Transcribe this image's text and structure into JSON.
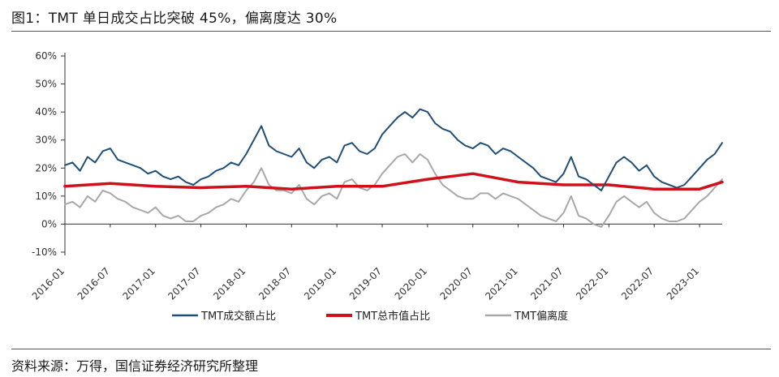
{
  "figure": {
    "title": "图1：TMT 单日成交占比突破 45%，偏离度达 30%",
    "source": "资料来源：万得，国信证券经济研究所整理"
  },
  "colors": {
    "turnover": "#1f4e79",
    "marketcap": "#d0101a",
    "deviation": "#a8a8a8",
    "axis": "#333333"
  },
  "chart_data": {
    "type": "line",
    "title": "",
    "xlabel": "",
    "ylabel": "",
    "ylim": [
      -10,
      60
    ],
    "y_ticks": [
      "-10%",
      "0%",
      "10%",
      "20%",
      "30%",
      "40%",
      "50%",
      "60%"
    ],
    "y_tick_values": [
      -10,
      0,
      10,
      20,
      30,
      40,
      50,
      60
    ],
    "x_ticks": [
      "2016-01",
      "2016-07",
      "2017-01",
      "2017-07",
      "2018-01",
      "2018-07",
      "2019-01",
      "2019-07",
      "2020-01",
      "2020-07",
      "2021-01",
      "2021-07",
      "2022-01",
      "2022-07",
      "2023-01"
    ],
    "x_range": [
      "2016-01",
      "2023-04"
    ],
    "grid": false,
    "legend_position": "bottom",
    "series": [
      {
        "name": "TMT成交额占比",
        "key": "turnover",
        "x": [
          "2016-01",
          "2016-02",
          "2016-03",
          "2016-04",
          "2016-05",
          "2016-06",
          "2016-07",
          "2016-08",
          "2016-09",
          "2016-10",
          "2016-11",
          "2016-12",
          "2017-01",
          "2017-02",
          "2017-03",
          "2017-04",
          "2017-05",
          "2017-06",
          "2017-07",
          "2017-08",
          "2017-09",
          "2017-10",
          "2017-11",
          "2017-12",
          "2018-01",
          "2018-02",
          "2018-03",
          "2018-04",
          "2018-05",
          "2018-06",
          "2018-07",
          "2018-08",
          "2018-09",
          "2018-10",
          "2018-11",
          "2018-12",
          "2019-01",
          "2019-02",
          "2019-03",
          "2019-04",
          "2019-05",
          "2019-06",
          "2019-07",
          "2019-08",
          "2019-09",
          "2019-10",
          "2019-11",
          "2019-12",
          "2020-01",
          "2020-02",
          "2020-03",
          "2020-04",
          "2020-05",
          "2020-06",
          "2020-07",
          "2020-08",
          "2020-09",
          "2020-10",
          "2020-11",
          "2020-12",
          "2021-01",
          "2021-02",
          "2021-03",
          "2021-04",
          "2021-05",
          "2021-06",
          "2021-07",
          "2021-08",
          "2021-09",
          "2021-10",
          "2021-11",
          "2021-12",
          "2022-01",
          "2022-02",
          "2022-03",
          "2022-04",
          "2022-05",
          "2022-06",
          "2022-07",
          "2022-08",
          "2022-09",
          "2022-10",
          "2022-11",
          "2022-12",
          "2023-01",
          "2023-02",
          "2023-03",
          "2023-04"
        ],
        "values": [
          21,
          22,
          19,
          24,
          22,
          26,
          27,
          23,
          22,
          21,
          20,
          18,
          19,
          17,
          16,
          17,
          15,
          14,
          16,
          17,
          19,
          20,
          22,
          21,
          25,
          30,
          35,
          28,
          26,
          25,
          24,
          27,
          22,
          20,
          23,
          24,
          22,
          28,
          29,
          26,
          25,
          27,
          32,
          35,
          38,
          40,
          38,
          41,
          40,
          36,
          34,
          33,
          30,
          28,
          27,
          29,
          28,
          25,
          27,
          26,
          24,
          22,
          20,
          17,
          16,
          15,
          18,
          24,
          17,
          16,
          14,
          12,
          17,
          22,
          24,
          22,
          19,
          21,
          17,
          15,
          14,
          13,
          14,
          17,
          20,
          23,
          25,
          29
        ]
      },
      {
        "name": "TMT总市值占比",
        "key": "marketcap",
        "x": [
          "2016-01",
          "2016-07",
          "2017-01",
          "2017-07",
          "2018-01",
          "2018-07",
          "2019-01",
          "2019-07",
          "2020-01",
          "2020-07",
          "2021-01",
          "2021-07",
          "2022-01",
          "2022-07",
          "2023-01",
          "2023-04"
        ],
        "values": [
          13.5,
          14.5,
          13.5,
          13,
          13.5,
          12.5,
          13.5,
          13.5,
          16,
          18,
          15,
          14,
          14,
          12.5,
          12.5,
          15
        ]
      },
      {
        "name": "TMT偏离度",
        "key": "deviation",
        "x": [
          "2016-01",
          "2016-02",
          "2016-03",
          "2016-04",
          "2016-05",
          "2016-06",
          "2016-07",
          "2016-08",
          "2016-09",
          "2016-10",
          "2016-11",
          "2016-12",
          "2017-01",
          "2017-02",
          "2017-03",
          "2017-04",
          "2017-05",
          "2017-06",
          "2017-07",
          "2017-08",
          "2017-09",
          "2017-10",
          "2017-11",
          "2017-12",
          "2018-01",
          "2018-02",
          "2018-03",
          "2018-04",
          "2018-05",
          "2018-06",
          "2018-07",
          "2018-08",
          "2018-09",
          "2018-10",
          "2018-11",
          "2018-12",
          "2019-01",
          "2019-02",
          "2019-03",
          "2019-04",
          "2019-05",
          "2019-06",
          "2019-07",
          "2019-08",
          "2019-09",
          "2019-10",
          "2019-11",
          "2019-12",
          "2020-01",
          "2020-02",
          "2020-03",
          "2020-04",
          "2020-05",
          "2020-06",
          "2020-07",
          "2020-08",
          "2020-09",
          "2020-10",
          "2020-11",
          "2020-12",
          "2021-01",
          "2021-02",
          "2021-03",
          "2021-04",
          "2021-05",
          "2021-06",
          "2021-07",
          "2021-08",
          "2021-09",
          "2021-10",
          "2021-11",
          "2021-12",
          "2022-01",
          "2022-02",
          "2022-03",
          "2022-04",
          "2022-05",
          "2022-06",
          "2022-07",
          "2022-08",
          "2022-09",
          "2022-10",
          "2022-11",
          "2022-12",
          "2023-01",
          "2023-02",
          "2023-03",
          "2023-04"
        ],
        "values": [
          7,
          8,
          6,
          10,
          8,
          12,
          11,
          9,
          8,
          6,
          5,
          4,
          6,
          3,
          2,
          3,
          1,
          1,
          3,
          4,
          6,
          7,
          9,
          8,
          12,
          15,
          20,
          14,
          12,
          12,
          11,
          14,
          9,
          7,
          10,
          11,
          9,
          15,
          16,
          13,
          12,
          14,
          18,
          21,
          24,
          25,
          22,
          25,
          23,
          18,
          14,
          12,
          10,
          9,
          9,
          11,
          11,
          9,
          11,
          10,
          9,
          7,
          5,
          3,
          2,
          1,
          4,
          10,
          3,
          2,
          0,
          -1,
          3,
          8,
          10,
          8,
          6,
          8,
          4,
          2,
          1,
          1,
          2,
          5,
          8,
          10,
          13,
          16
        ]
      }
    ],
    "legend": [
      {
        "label": "TMT成交额占比",
        "key": "turnover"
      },
      {
        "label": "TMT总市值占比",
        "key": "marketcap"
      },
      {
        "label": "TMT偏离度",
        "key": "deviation"
      }
    ]
  }
}
